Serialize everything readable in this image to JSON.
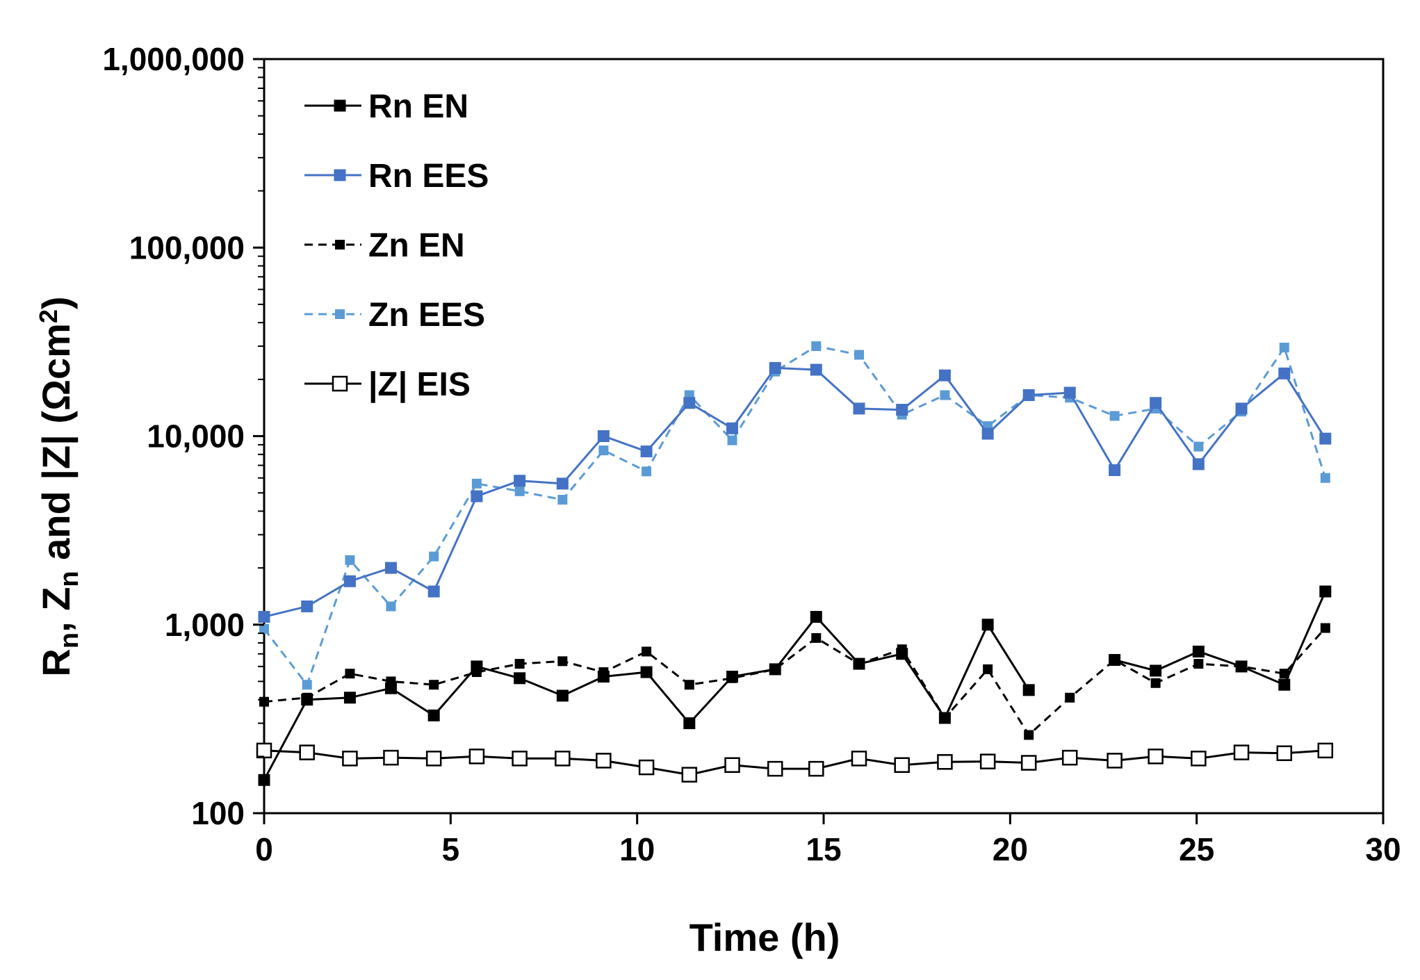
{
  "chart_data": {
    "type": "line",
    "title": "",
    "xlabel": "Time (h)",
    "ylabel": "Rn, Zn and |Z| (Ωcm²)",
    "ylabel_parts": {
      "r": "R",
      "r_sub": "n",
      "comma": ", ",
      "z": "Z",
      "z_sub": "n",
      "rest": " and  |Z| (Ωcm",
      "sup": "2",
      "close": ")"
    },
    "xlim": [
      0,
      30
    ],
    "ylim": [
      100,
      1000000
    ],
    "yscale": "log",
    "xticks": [
      0,
      5,
      10,
      15,
      20,
      25,
      30
    ],
    "yticks": [
      100,
      1000,
      10000,
      100000,
      1000000
    ],
    "xtick_labels": [
      "0",
      "5",
      "10",
      "15",
      "20",
      "25",
      "30"
    ],
    "ytick_labels": [
      "100",
      "1,000",
      "10,000",
      "100,000",
      "1,000,000"
    ],
    "grid": false,
    "legend_position": "top-left",
    "series": [
      {
        "name": "Rn EN",
        "color": "#000000",
        "line": "solid",
        "marker": "filled-square",
        "points": [
          [
            0,
            150
          ],
          [
            1.15,
            400
          ],
          [
            2.3,
            410
          ],
          [
            3.4,
            460
          ],
          [
            4.55,
            330
          ],
          [
            5.7,
            600
          ],
          [
            6.85,
            520
          ],
          [
            8.0,
            420
          ],
          [
            9.1,
            530
          ],
          [
            10.25,
            560
          ],
          [
            11.4,
            300
          ],
          [
            12.55,
            530
          ],
          [
            13.7,
            580
          ],
          [
            14.8,
            1100
          ],
          [
            15.95,
            620
          ],
          [
            17.1,
            700
          ],
          [
            18.25,
            320
          ],
          [
            19.4,
            1000
          ],
          [
            20.5,
            450
          ],
          null,
          [
            22.8,
            650
          ],
          [
            23.9,
            570
          ],
          [
            25.05,
            720
          ],
          [
            26.2,
            600
          ],
          [
            27.35,
            480
          ],
          [
            28.45,
            1500
          ]
        ]
      },
      {
        "name": "Rn EES",
        "color": "#4472c4",
        "line": "solid",
        "marker": "filled-square",
        "points": [
          [
            0,
            1100
          ],
          [
            1.15,
            1250
          ],
          [
            2.3,
            1700
          ],
          [
            3.4,
            2000
          ],
          [
            4.55,
            1500
          ],
          [
            5.7,
            4800
          ],
          [
            6.85,
            5800
          ],
          [
            8.0,
            5600
          ],
          [
            9.1,
            10000
          ],
          [
            10.25,
            8300
          ],
          [
            11.4,
            15000
          ],
          [
            12.55,
            11000
          ],
          [
            13.7,
            23000
          ],
          [
            14.8,
            22500
          ],
          [
            15.95,
            14000
          ],
          [
            17.1,
            13800
          ],
          [
            18.25,
            21000
          ],
          [
            19.4,
            10300
          ],
          [
            20.5,
            16500
          ],
          [
            21.6,
            17000
          ],
          [
            22.8,
            6600
          ],
          [
            23.9,
            15000
          ],
          [
            25.05,
            7100
          ],
          [
            26.2,
            14000
          ],
          [
            27.35,
            21500
          ],
          [
            28.45,
            9700
          ]
        ]
      },
      {
        "name": "Zn EN",
        "color": "#000000",
        "line": "dashed",
        "marker": "small-filled-square",
        "points": [
          [
            0,
            390
          ],
          [
            1.15,
            410
          ],
          [
            2.3,
            550
          ],
          [
            3.4,
            500
          ],
          [
            4.55,
            480
          ],
          [
            5.7,
            560
          ],
          [
            6.85,
            620
          ],
          [
            8.0,
            640
          ],
          [
            9.1,
            560
          ],
          [
            10.25,
            720
          ],
          [
            11.4,
            480
          ],
          [
            12.55,
            520
          ],
          [
            13.7,
            580
          ],
          [
            14.8,
            850
          ],
          [
            15.95,
            620
          ],
          [
            17.1,
            740
          ],
          [
            18.25,
            320
          ],
          [
            19.4,
            580
          ],
          [
            20.5,
            260
          ],
          [
            21.6,
            410
          ],
          [
            22.8,
            650
          ],
          [
            23.9,
            490
          ],
          [
            25.05,
            620
          ],
          [
            26.2,
            600
          ],
          [
            27.35,
            550
          ],
          [
            28.45,
            960
          ]
        ]
      },
      {
        "name": "Zn EES",
        "color": "#5b9bd5",
        "line": "dashed",
        "marker": "small-filled-square",
        "points": [
          [
            0,
            950
          ],
          [
            1.15,
            480
          ],
          [
            2.3,
            2200
          ],
          [
            3.4,
            1250
          ],
          [
            4.55,
            2300
          ],
          [
            5.7,
            5600
          ],
          [
            6.85,
            5100
          ],
          [
            8.0,
            4600
          ],
          [
            9.1,
            8400
          ],
          [
            10.25,
            6500
          ],
          [
            11.4,
            16500
          ],
          [
            12.55,
            9500
          ],
          [
            13.7,
            22000
          ],
          [
            14.8,
            30000
          ],
          [
            15.95,
            27000
          ],
          [
            17.1,
            13000
          ],
          [
            18.25,
            16500
          ],
          [
            19.4,
            11300
          ],
          [
            20.5,
            16500
          ],
          [
            21.6,
            16000
          ],
          [
            22.8,
            12800
          ],
          [
            23.9,
            14000
          ],
          [
            25.05,
            8800
          ],
          [
            26.2,
            13500
          ],
          [
            27.35,
            29500
          ],
          [
            28.45,
            6000
          ]
        ]
      },
      {
        "name": "|Z| EIS",
        "color": "#000000",
        "line": "solid",
        "marker": "open-square",
        "points": [
          [
            0,
            215
          ],
          [
            1.15,
            210
          ],
          [
            2.3,
            195
          ],
          [
            3.4,
            197
          ],
          [
            4.55,
            195
          ],
          [
            5.7,
            200
          ],
          [
            6.85,
            195
          ],
          [
            8.0,
            195
          ],
          [
            9.1,
            190
          ],
          [
            10.25,
            175
          ],
          [
            11.4,
            160
          ],
          [
            12.55,
            180
          ],
          [
            13.7,
            172
          ],
          [
            14.8,
            172
          ],
          [
            15.95,
            195
          ],
          [
            17.1,
            180
          ],
          [
            18.25,
            187
          ],
          [
            19.4,
            188
          ],
          [
            20.5,
            185
          ],
          [
            21.6,
            197
          ],
          [
            22.8,
            190
          ],
          [
            23.9,
            200
          ],
          [
            25.05,
            195
          ],
          [
            26.2,
            210
          ],
          [
            27.35,
            208
          ],
          [
            28.45,
            215
          ]
        ]
      }
    ]
  }
}
